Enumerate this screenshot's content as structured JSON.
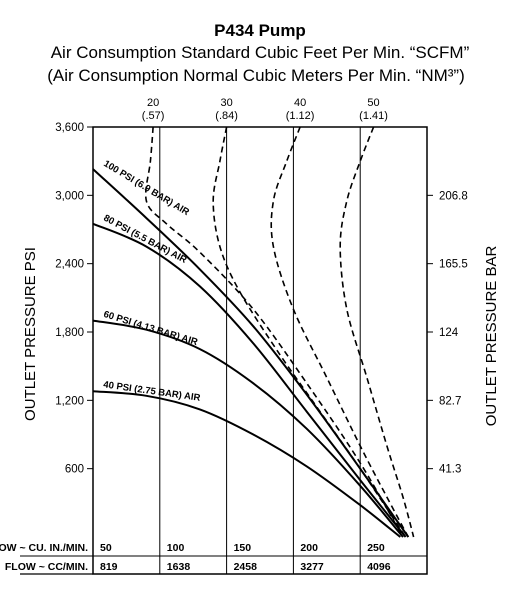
{
  "chart_data": {
    "type": "line",
    "title": "P434 Pump",
    "subtitle_line1": "Air Consumption Standard Cubic Feet Per Min. “SCFM”",
    "subtitle_line2": "(Air Consumption Normal Cubic Meters Per Min. “NM³”)",
    "ylabel_left": "OUTLET PRESSURE PSI",
    "ylabel_right": "OUTLET PRESSURE BAR",
    "ylim": [
      0,
      3600
    ],
    "xlim": [
      0,
      250
    ],
    "y_ticks_left": [
      "3,600",
      "3,000",
      "2,400",
      "1,800",
      "1,200",
      "600"
    ],
    "y_ticks_right": [
      "206.8",
      "165.5",
      "124",
      "82.7",
      "41.3"
    ],
    "flow_table": {
      "row1_label": "FLOW ~ CU. IN./MIN.",
      "row1_values": [
        "50",
        "100",
        "150",
        "200",
        "250"
      ],
      "row2_label": "FLOW ~ CC/MIN.",
      "row2_values": [
        "819",
        "1638",
        "2458",
        "3277",
        "4096"
      ]
    },
    "series": [
      {
        "name": "100 PSI (6.9 BAR) AIR",
        "style": "solid",
        "x": [
          0,
          40,
          80,
          120,
          160,
          200,
          236
        ],
        "y": [
          3230,
          2800,
          2350,
          1850,
          1250,
          600,
          0
        ]
      },
      {
        "name": "80 PSI (5.5 BAR) AIR",
        "style": "solid",
        "x": [
          0,
          40,
          80,
          120,
          160,
          200,
          234
        ],
        "y": [
          2750,
          2550,
          2200,
          1700,
          1100,
          500,
          0
        ]
      },
      {
        "name": "60 PSI (4.13 BAR) AIR",
        "style": "solid",
        "x": [
          0,
          40,
          80,
          120,
          160,
          200,
          232
        ],
        "y": [
          1900,
          1820,
          1650,
          1350,
          950,
          450,
          0
        ]
      },
      {
        "name": "40 PSI (2.75 BAR) AIR",
        "style": "solid",
        "x": [
          0,
          40,
          80,
          120,
          160,
          200,
          230
        ],
        "y": [
          1280,
          1240,
          1120,
          900,
          620,
          280,
          0
        ]
      }
    ],
    "air_consumption_series": [
      {
        "scfm": "20",
        "nm3": "(.57)",
        "style": "dashed",
        "x": [
          45,
          43,
          40,
          55,
          80,
          120,
          160,
          200,
          232
        ],
        "y": [
          3600,
          3300,
          2950,
          2750,
          2500,
          2000,
          1350,
          650,
          0
        ]
      },
      {
        "scfm": "30",
        "nm3": "(.84)",
        "style": "dashed",
        "x": [
          100,
          95,
          90,
          95,
          110,
          140,
          170,
          200,
          234
        ],
        "y": [
          3600,
          3300,
          2950,
          2550,
          2150,
          1600,
          1100,
          600,
          0
        ]
      },
      {
        "scfm": "40",
        "nm3": "(1.12)",
        "style": "dashed",
        "x": [
          155,
          145,
          135,
          135,
          150,
          175,
          200,
          220,
          236
        ],
        "y": [
          3600,
          3300,
          2950,
          2550,
          2000,
          1400,
          800,
          350,
          0
        ]
      },
      {
        "scfm": "50",
        "nm3": "(1.41)",
        "style": "dashed",
        "x": [
          210,
          200,
          190,
          185,
          190,
          205,
          220,
          232,
          240
        ],
        "y": [
          3600,
          3300,
          2950,
          2550,
          2000,
          1400,
          800,
          350,
          0
        ]
      }
    ]
  }
}
